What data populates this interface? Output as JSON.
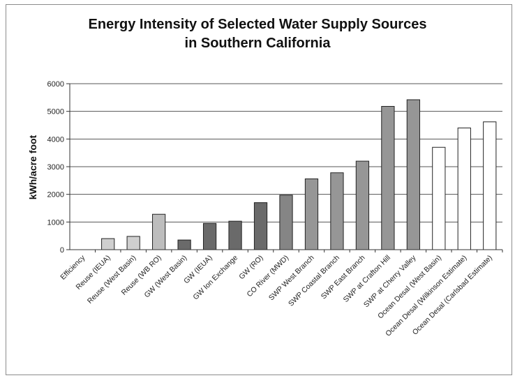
{
  "chart_data": {
    "type": "bar",
    "title_line1": "Energy Intensity of Selected Water Supply Sources",
    "title_line2": "in Southern California",
    "xlabel": "",
    "ylabel": "kWh/acre foot",
    "ylim": [
      0,
      6000
    ],
    "yticks": [
      "0",
      "1000",
      "2000",
      "3000",
      "4000",
      "5000",
      "6000"
    ],
    "grid": true,
    "categories": [
      "Efficiency",
      "Reuse (IEUA)",
      "Reuse (West Basin)",
      "Reuse (WB RO)",
      "GW (West Basin)",
      "GW (IEUA)",
      "GW Ion Exchange",
      "GW (RO)",
      "CO River (MWD)",
      "SWP West Branch",
      "SWP Coastal Branch",
      "SWP East Branch",
      "SWP at Crafton Hill",
      "SWP at Cherry Valley",
      "Ocean Desal (West Basin)",
      "Ocean Desal (Wilkinson Estimate)",
      "Ocean Desal (Carlsbad Estimate)"
    ],
    "values": [
      0,
      400,
      480,
      1280,
      350,
      950,
      1030,
      1700,
      1970,
      2560,
      2780,
      3200,
      5180,
      5420,
      3700,
      4400,
      4620
    ],
    "colors": [
      "#cfcfcf",
      "#cfcfcf",
      "#cfcfcf",
      "#bdbdbd",
      "#6a6a6a",
      "#6a6a6a",
      "#6a6a6a",
      "#6a6a6a",
      "#858585",
      "#969696",
      "#969696",
      "#969696",
      "#969696",
      "#969696",
      "#ffffff",
      "#ffffff",
      "#ffffff"
    ]
  }
}
